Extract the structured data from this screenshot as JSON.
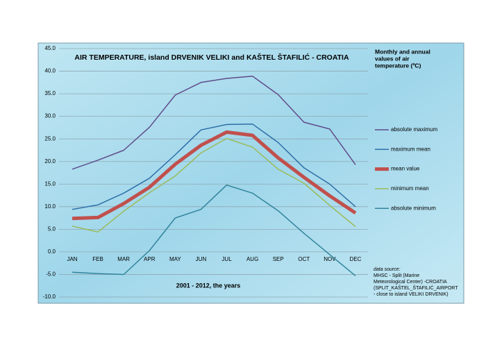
{
  "chart_data": {
    "type": "line",
    "title": "AIR TEMPERATURE, island DRVENIK VELIKI and KAŠTEL ŠTAFILIĆ - CROATIA",
    "x_label": "2001 - 2012, the years",
    "legend_title": [
      "Monthly and annual",
      "values of air",
      "temperature (ºC)"
    ],
    "source_note": [
      "data source:",
      "MHSC - Split (Marine",
      "Meteorological Center) -CROATIA",
      "(SPLIT_KAŠTEL_ŠTAFILIĆ_AIRPORT",
      "- close to island VELIKI DRVENIK)"
    ],
    "categories": [
      "JAN",
      "FEB",
      "MAR",
      "APR",
      "MAY",
      "JUN",
      "JUL",
      "AUG",
      "SEP",
      "OCT",
      "NOV",
      "DEC"
    ],
    "series": [
      {
        "name": "absolute maximum",
        "color": "#5f4b8b",
        "width": 1.5,
        "values": [
          18.3,
          20.3,
          22.5,
          27.6,
          34.7,
          37.5,
          38.4,
          38.9,
          34.8,
          28.7,
          27.2,
          19.3
        ]
      },
      {
        "name": "maximum mean",
        "color": "#2e6fa8",
        "width": 1.5,
        "values": [
          9.4,
          10.4,
          13.0,
          16.3,
          21.5,
          27.0,
          28.2,
          28.3,
          24.2,
          18.6,
          15.0,
          10.0
        ]
      },
      {
        "name": "mean value",
        "color": "#c0504d",
        "width": 5,
        "values": [
          7.4,
          7.6,
          10.7,
          14.3,
          19.4,
          23.6,
          26.5,
          25.8,
          20.8,
          16.5,
          12.4,
          8.6
        ]
      },
      {
        "name": "minimum mean",
        "color": "#9bbb59",
        "width": 1.5,
        "values": [
          5.7,
          4.4,
          9.0,
          13.1,
          16.8,
          21.9,
          25.1,
          23.2,
          18.3,
          15.2,
          10.3,
          5.6
        ]
      },
      {
        "name": "absolute minimum",
        "color": "#31849b",
        "width": 1.5,
        "values": [
          -4.5,
          -4.8,
          -5.0,
          0.3,
          7.5,
          9.4,
          14.8,
          13.0,
          9.1,
          4.1,
          -0.6,
          -5.3
        ]
      }
    ],
    "ylim": [
      -10,
      45
    ],
    "yticks": [
      {
        "value": -10,
        "label": "-10.0"
      },
      {
        "value": -5,
        "label": "-5.0"
      },
      {
        "value": 0,
        "label": "0.0"
      },
      {
        "value": 5,
        "label": "5.0"
      },
      {
        "value": 10,
        "label": "10.0"
      },
      {
        "value": 15,
        "label": "15.0"
      },
      {
        "value": 20,
        "label": "20.0"
      },
      {
        "value": 25,
        "label": "25.0"
      },
      {
        "value": 30,
        "label": "30.0"
      },
      {
        "value": 35,
        "label": "35.0"
      },
      {
        "value": 40,
        "label": "40.0"
      },
      {
        "value": 45,
        "label": "45.0"
      }
    ],
    "grid": true
  }
}
